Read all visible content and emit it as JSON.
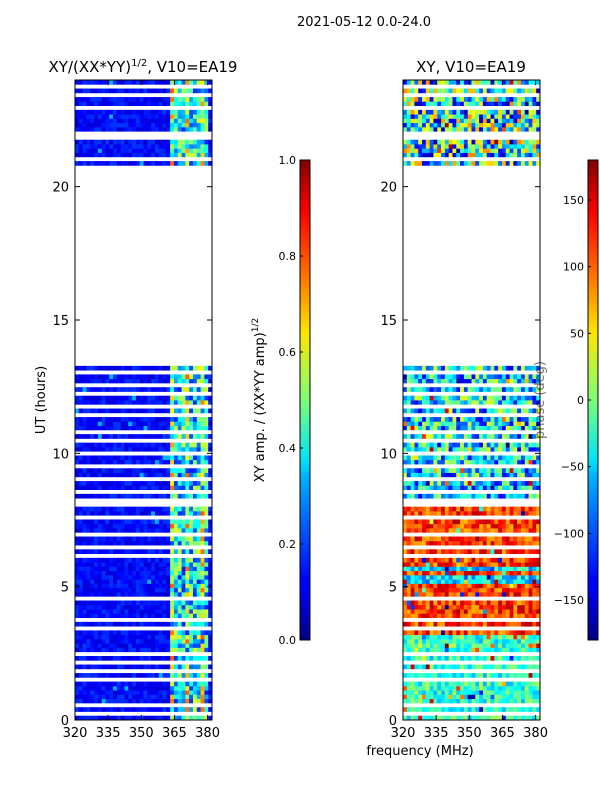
{
  "suptitle": "2021-05-12 0.0-24.0",
  "xlabel": "frequency (MHz)",
  "ylabel": "UT (hours)",
  "chart_data": [
    {
      "type": "heatmap",
      "title_main": "XY/(XX*YY)",
      "title_sup": "1/2",
      "title_tail": ", V10=EA19",
      "x_ticks": [
        320,
        335,
        350,
        365,
        380
      ],
      "y_ticks": [
        0,
        5,
        10,
        15,
        20
      ],
      "xlim": [
        320,
        382
      ],
      "ylim": [
        0,
        24
      ],
      "colorbar": {
        "label_main": "XY amp. / (XX*YY amp)",
        "label_sup": "1/2",
        "range": [
          0.0,
          1.0
        ],
        "ticks": [
          "0.0",
          "0.2",
          "0.4",
          "0.6",
          "0.8",
          "1.0"
        ]
      },
      "data_gap_ut": [
        13.2,
        20.9
      ],
      "bright_band_mhz": [
        363,
        381
      ],
      "colormap": "jet"
    },
    {
      "type": "heatmap",
      "title": "XY, V10=EA19",
      "x_ticks": [
        320,
        335,
        350,
        365,
        380
      ],
      "y_ticks": [
        0,
        5,
        10,
        15,
        20
      ],
      "xlim": [
        320,
        382
      ],
      "ylim": [
        0,
        24
      ],
      "colorbar": {
        "label": "phase (deg)",
        "range": [
          -180,
          180
        ],
        "ticks": [
          "−150",
          "−100",
          "−50",
          "0",
          "50",
          "100",
          "150"
        ]
      },
      "data_gap_ut": [
        13.2,
        20.9
      ],
      "colormap": "jet"
    }
  ],
  "colors": {
    "jet_low": "#00007f",
    "jet_high": "#7f0000"
  }
}
